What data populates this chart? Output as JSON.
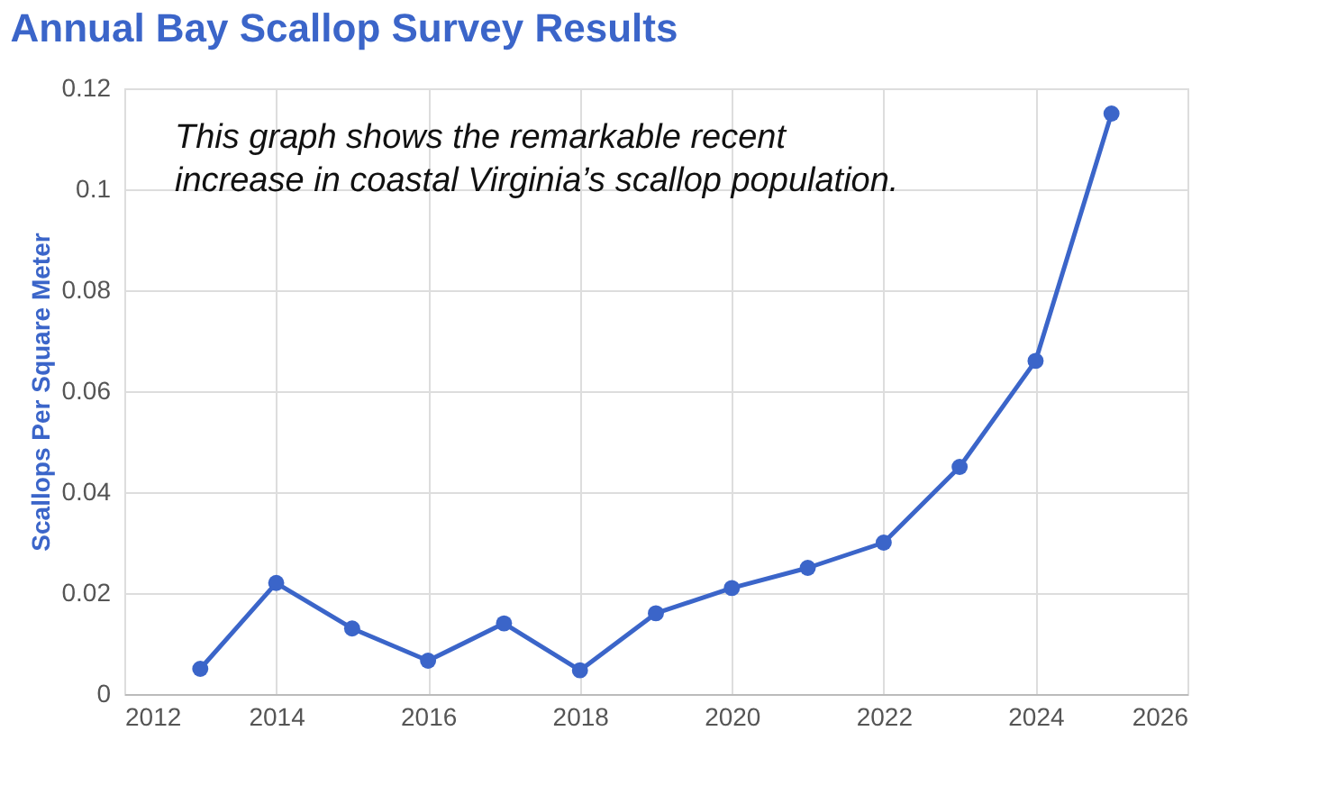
{
  "chart_data": {
    "type": "line",
    "title": "Annual Bay Scallop Survey Results",
    "ylabel": "Scallops Per Square Meter",
    "annotations": [
      "This graph shows the remarkable recent\nincrease in coastal Virginia’s scallop population."
    ],
    "x": [
      2013,
      2014,
      2015,
      2016,
      2017,
      2018,
      2019,
      2020,
      2021,
      2022,
      2023,
      2024,
      2025
    ],
    "series": [
      {
        "color": "#3b65c9",
        "values": [
          0.005,
          0.022,
          0.013,
          0.0066,
          0.014,
          0.0047,
          0.016,
          0.021,
          0.025,
          0.03,
          0.045,
          0.066,
          0.115
        ]
      }
    ],
    "xlim": [
      2012,
      2026
    ],
    "xticks": [
      2012,
      2014,
      2016,
      2018,
      2020,
      2022,
      2024,
      2026
    ],
    "ylim": [
      0,
      0.12
    ],
    "yticks": [
      0,
      0.02,
      0.04,
      0.06,
      0.08,
      0.1,
      0.12
    ],
    "grid": true,
    "marker": "circle",
    "line_style": "solid"
  }
}
